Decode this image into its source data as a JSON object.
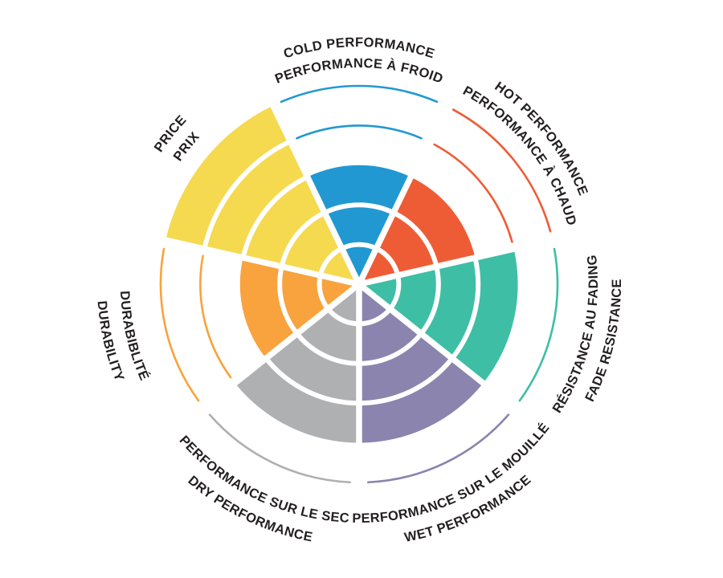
{
  "chart_data": {
    "type": "radial-sector-rating",
    "title": "",
    "grid": true,
    "legend_position": "labels-around-circle",
    "scale": {
      "rings": 5,
      "min": 0,
      "max": 5
    },
    "colors": {
      "background": "#FFFFFF",
      "label_text": "#231F20",
      "grid_gap": "#FFFFFF"
    },
    "sectors": [
      {
        "id": "cold-performance",
        "label_en": "COLD PERFORMANCE",
        "label_fr": "PERFORMANCE À FROID",
        "value": 3,
        "color": "#2198D1",
        "center_angle_deg": 90,
        "label_side": "top"
      },
      {
        "id": "hot-performance",
        "label_en": "HOT PERFORMANCE",
        "label_fr": "PERFORMANCE À CHAUD",
        "value": 3,
        "color": "#EE5C35",
        "center_angle_deg": 38.57,
        "label_side": "top"
      },
      {
        "id": "fade-resistance",
        "label_en": "FADE RESISTANCE",
        "label_fr": "RÉSISTANCE AU FADING",
        "value": 4,
        "color": "#3EBEA5",
        "center_angle_deg": -12.86,
        "label_side": "bottom"
      },
      {
        "id": "wet-performance",
        "label_en": "WET PERFORMANCE",
        "label_fr": "PERFORMANCE SUR LE MOUILLÉ",
        "value": 4,
        "color": "#8A84AE",
        "center_angle_deg": -64.29,
        "label_side": "bottom"
      },
      {
        "id": "dry-performance",
        "label_en": "DRY PERFORMANCE",
        "label_fr": "PERFORMANCE SUR LE SEC",
        "value": 4,
        "color": "#AEB0B2",
        "center_angle_deg": -115.71,
        "label_side": "bottom"
      },
      {
        "id": "durability",
        "label_en": "DURABILITY",
        "label_fr": "DURABIBLITÉ",
        "value": 3,
        "color": "#F8A33E",
        "center_angle_deg": -167.14,
        "label_side": "bottom"
      },
      {
        "id": "price",
        "label_en": "PRICE",
        "label_fr": "PRIX",
        "value": 5,
        "color": "#F5D94F",
        "center_angle_deg": 141.43,
        "label_side": "top"
      }
    ]
  }
}
